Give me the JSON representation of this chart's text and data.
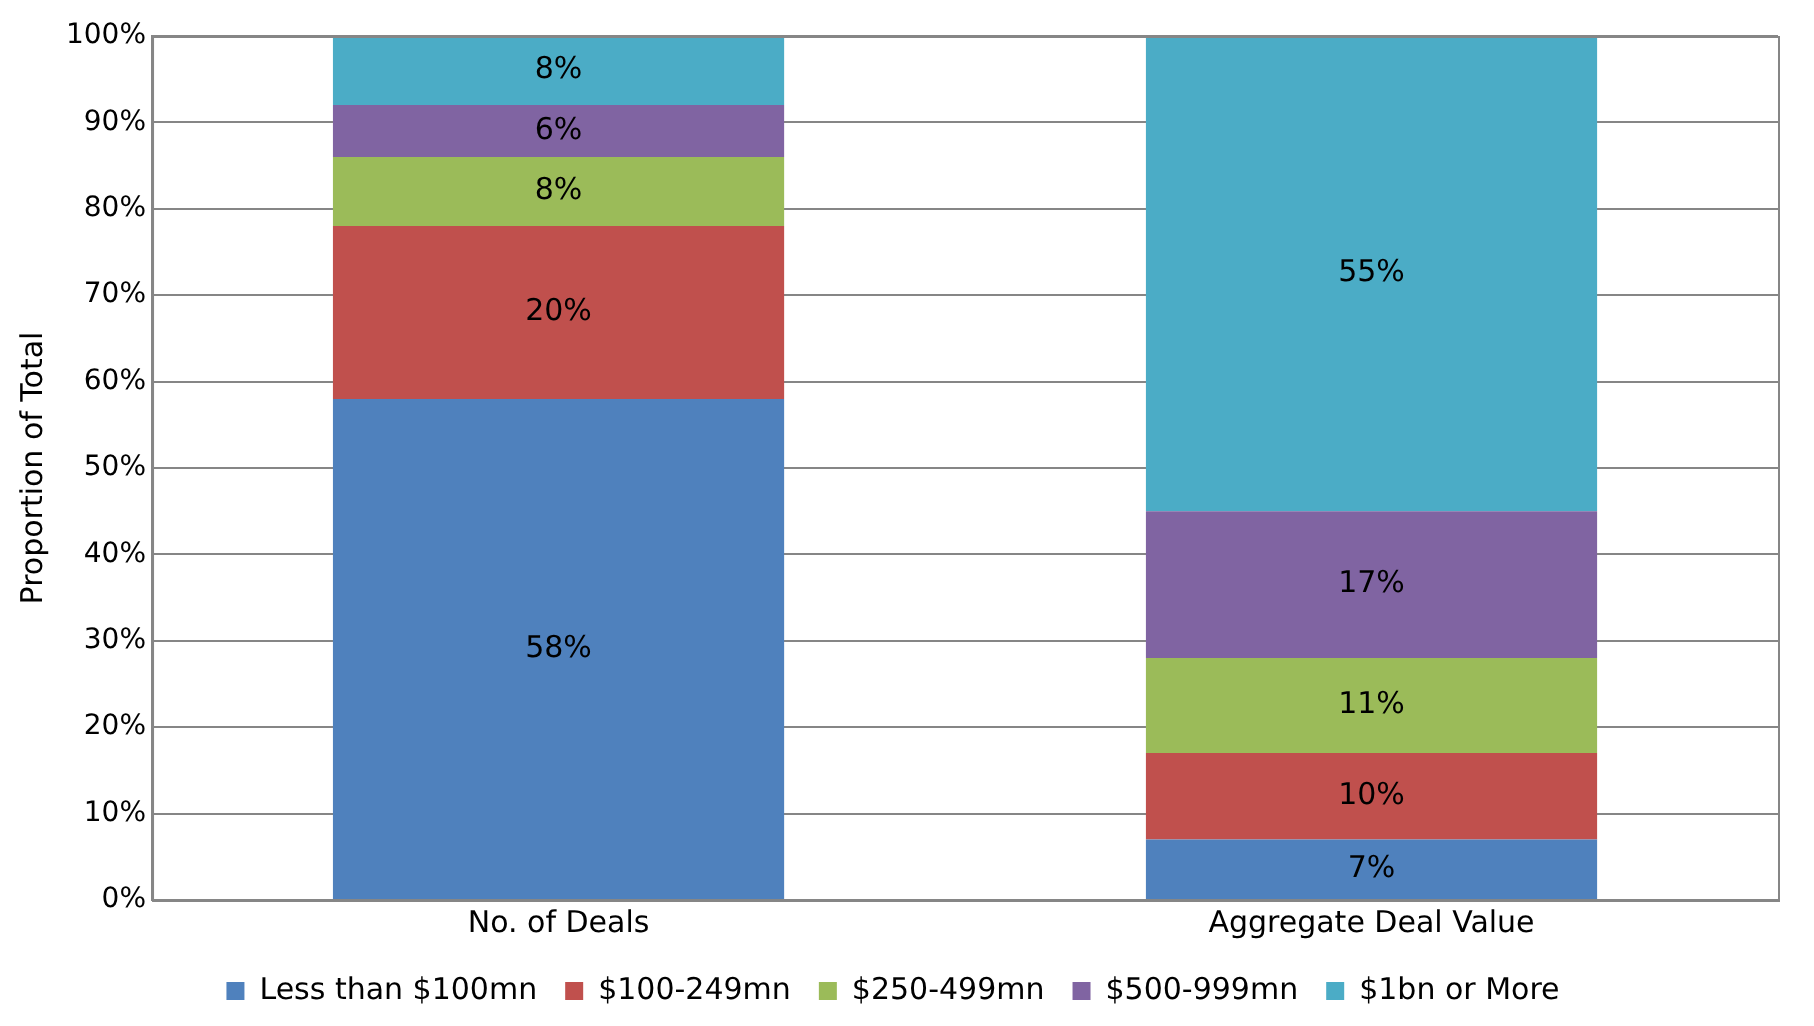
{
  "chart_data": {
    "type": "bar",
    "stacked": true,
    "ylabel": "Proportion of Total",
    "categories": [
      "No. of Deals",
      "Aggregate Deal Value"
    ],
    "series": [
      {
        "name": "Less than $100mn",
        "color": "#4f81bd",
        "values": [
          58,
          7
        ],
        "value_labels": [
          "58%",
          "7%"
        ]
      },
      {
        "name": "$100-249mn",
        "color": "#c0504d",
        "values": [
          20,
          10
        ],
        "value_labels": [
          "20%",
          "10%"
        ]
      },
      {
        "name": "$250-499mn",
        "color": "#9bbb59",
        "values": [
          8,
          11
        ],
        "value_labels": [
          "8%",
          "11%"
        ]
      },
      {
        "name": "$500-999mn",
        "color": "#8064a2",
        "values": [
          6,
          17
        ],
        "value_labels": [
          "6%",
          "17%"
        ]
      },
      {
        "name": "$1bn or More",
        "color": "#4bacc6",
        "values": [
          8,
          55
        ],
        "value_labels": [
          "8%",
          "55%"
        ]
      }
    ],
    "ylim": [
      0,
      100
    ],
    "yticks": [
      {
        "value": 0,
        "label": "0%"
      },
      {
        "value": 10,
        "label": "10%"
      },
      {
        "value": 20,
        "label": "20%"
      },
      {
        "value": 30,
        "label": "30%"
      },
      {
        "value": 40,
        "label": "40%"
      },
      {
        "value": 50,
        "label": "50%"
      },
      {
        "value": 60,
        "label": "60%"
      },
      {
        "value": 70,
        "label": "70%"
      },
      {
        "value": 80,
        "label": "80%"
      },
      {
        "value": 90,
        "label": "90%"
      },
      {
        "value": 100,
        "label": "100%"
      }
    ],
    "grid": "y",
    "legend": "bottom"
  }
}
